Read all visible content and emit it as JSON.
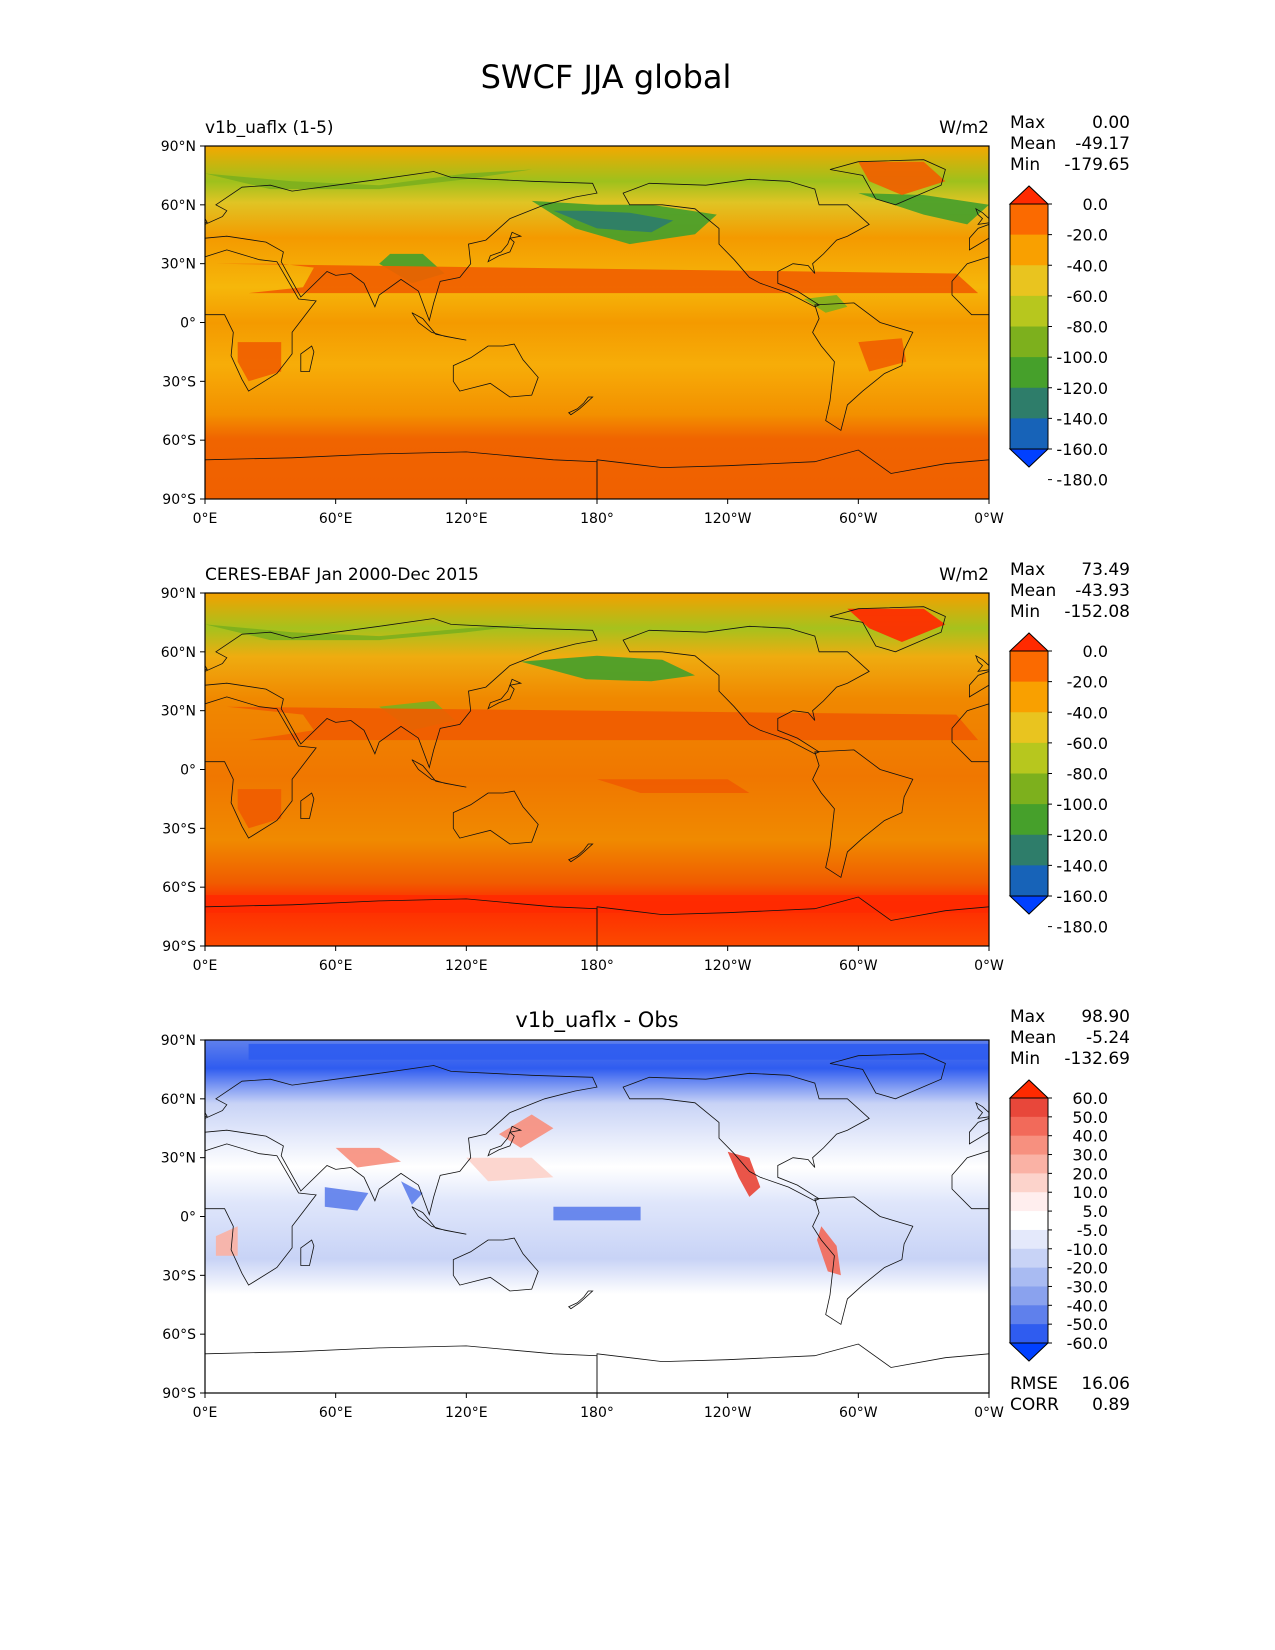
{
  "figure": {
    "title": "SWCF JJA global"
  },
  "axes": {
    "lon_ticks": [
      "0°E",
      "60°E",
      "120°E",
      "180°",
      "120°W",
      "60°W",
      "0°W"
    ],
    "lat_ticks": [
      "90°N",
      "60°N",
      "30°N",
      "0°",
      "30°S",
      "60°S",
      "90°S"
    ]
  },
  "panels": [
    {
      "id": "model",
      "left_label": "v1b_uaflx (1-5)",
      "right_label": "W/m2",
      "center_label": "",
      "stats": [
        {
          "label": "Max",
          "value": "0.00"
        },
        {
          "label": "Mean",
          "value": "-49.17"
        },
        {
          "label": "Min",
          "value": "-179.65"
        }
      ],
      "colorbar": {
        "labels": [
          "0.0",
          "-20.0",
          "-40.0",
          "-60.0",
          "-80.0",
          "-100.0",
          "-120.0",
          "-140.0",
          "-160.0",
          "-180.0"
        ],
        "colors": [
          "#ff2a00",
          "#fb6a00",
          "#f9a000",
          "#e9c41f",
          "#b7c71e",
          "#7db01d",
          "#46a02b",
          "#2e7d6a",
          "#1763b8",
          "#0040ff"
        ]
      }
    },
    {
      "id": "obs",
      "left_label": "CERES-EBAF Jan 2000-Dec 2015",
      "right_label": "W/m2",
      "center_label": "",
      "stats": [
        {
          "label": "Max",
          "value": "73.49"
        },
        {
          "label": "Mean",
          "value": "-43.93"
        },
        {
          "label": "Min",
          "value": "-152.08"
        }
      ],
      "colorbar": {
        "labels": [
          "0.0",
          "-20.0",
          "-40.0",
          "-60.0",
          "-80.0",
          "-100.0",
          "-120.0",
          "-140.0",
          "-160.0",
          "-180.0"
        ],
        "colors": [
          "#ff2a00",
          "#fb6a00",
          "#f9a000",
          "#e9c41f",
          "#b7c71e",
          "#7db01d",
          "#46a02b",
          "#2e7d6a",
          "#1763b8",
          "#0040ff"
        ]
      }
    },
    {
      "id": "diff",
      "left_label": "",
      "right_label": "",
      "center_label": "v1b_uaflx - Obs",
      "stats": [
        {
          "label": "Max",
          "value": "98.90"
        },
        {
          "label": "Mean",
          "value": "-5.24"
        },
        {
          "label": "Min",
          "value": "-132.69"
        }
      ],
      "extra_stats": [
        {
          "label": "RMSE",
          "value": "16.06"
        },
        {
          "label": "CORR",
          "value": "0.89"
        }
      ],
      "colorbar": {
        "labels": [
          "60.0",
          "50.0",
          "40.0",
          "30.0",
          "20.0",
          "10.0",
          "5.0",
          "-5.0",
          "-10.0",
          "-20.0",
          "-30.0",
          "-40.0",
          "-50.0",
          "-60.0"
        ],
        "colors": [
          "#ff2a00",
          "#e8473a",
          "#f26a5a",
          "#f7907f",
          "#fab2a5",
          "#fcd3cb",
          "#ffeeee",
          "#ffffff",
          "#e4e9fb",
          "#c8d3f6",
          "#a9bbf2",
          "#8aa2ee",
          "#5f80ec",
          "#2f5cf0",
          "#0040ff"
        ]
      }
    }
  ]
}
